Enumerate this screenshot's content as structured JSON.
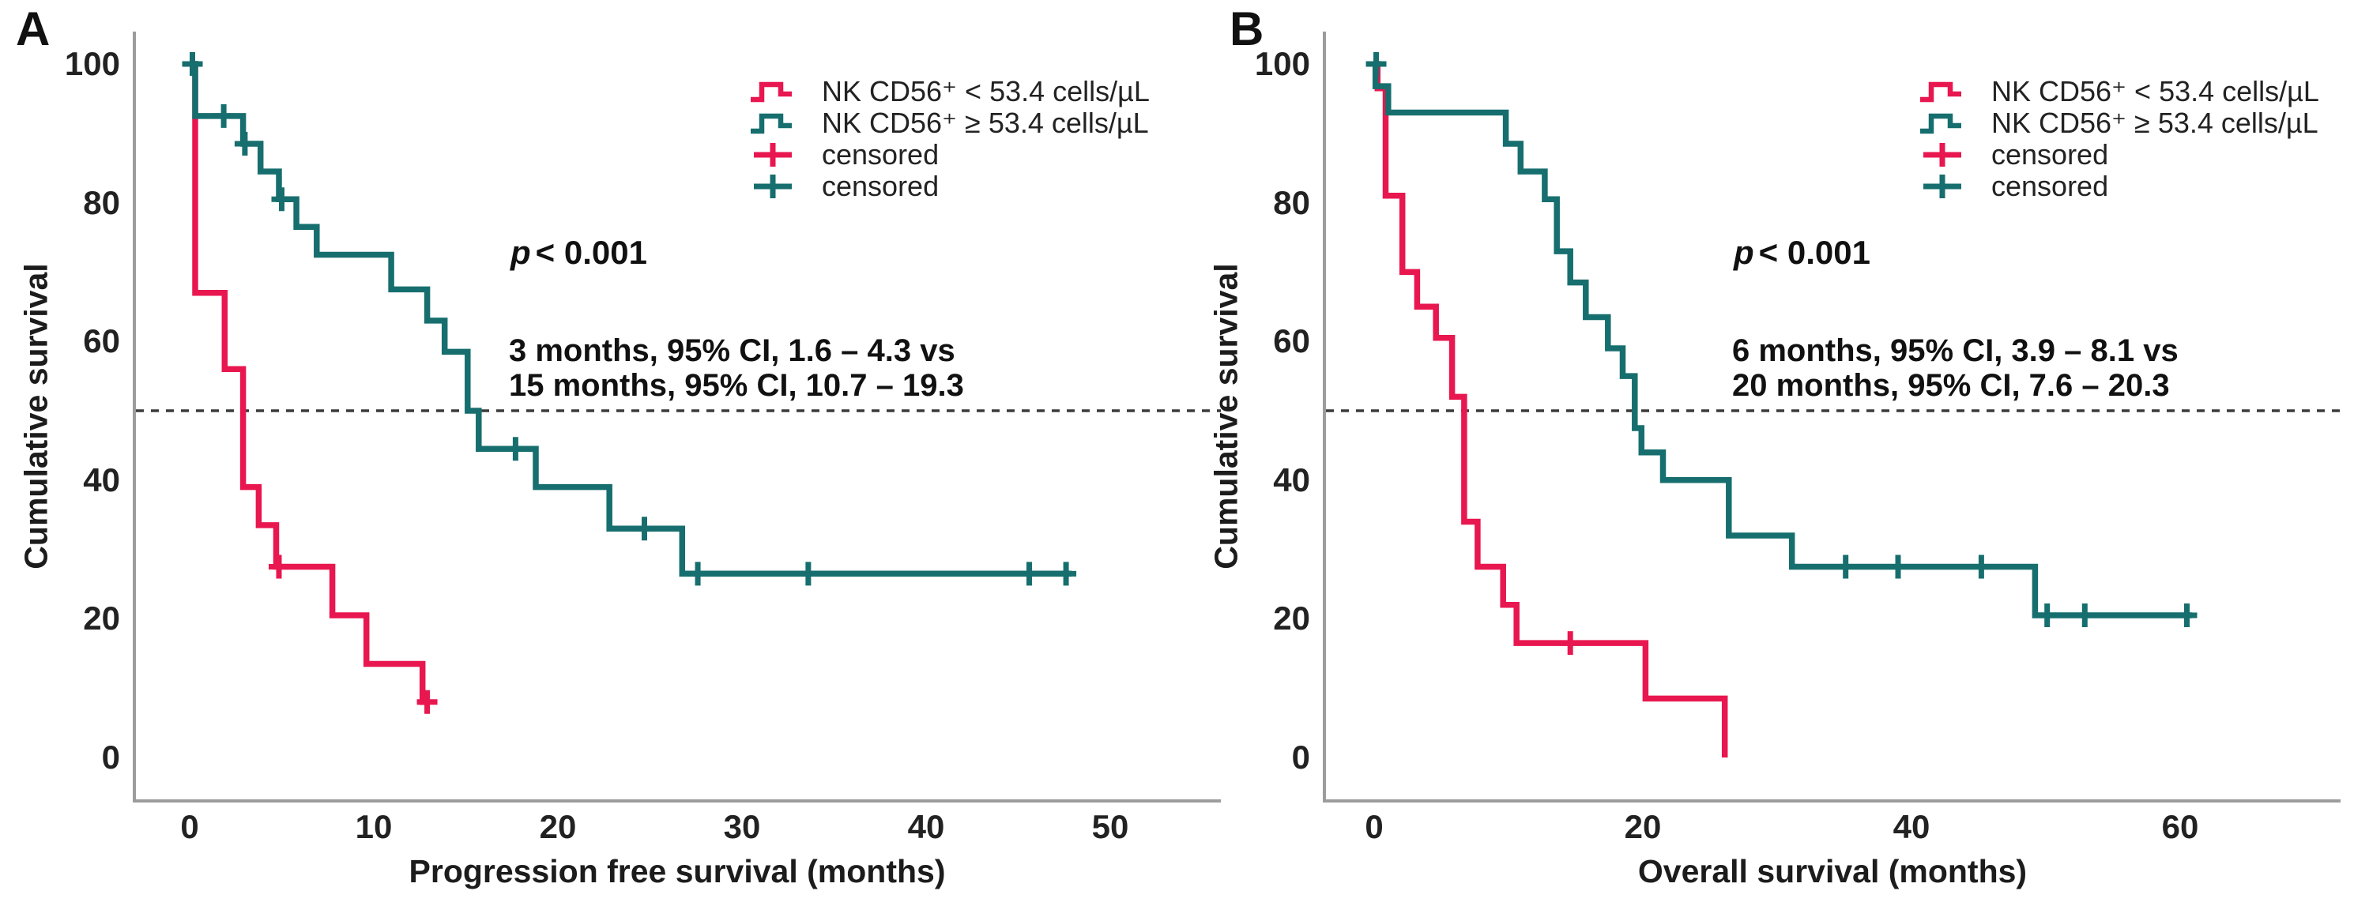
{
  "figure_type": "kaplan_meier_survival_figure",
  "background": "#ffffff",
  "colors": {
    "group_low": "#e8174f",
    "group_high": "#176e6e",
    "axis_line": "#9c9c9c",
    "reference_dash": "#3c3c3c",
    "text": "#1c1c1c"
  },
  "chart_data": [
    {
      "type": "line",
      "subtype": "kaplan_meier_step",
      "panel_label": "A",
      "xlabel": "Progression free survival (months)",
      "ylabel": "Cumulative survival",
      "xlim": [
        0,
        56
      ],
      "ylim": [
        0,
        100
      ],
      "xticks": [
        0,
        10,
        20,
        30,
        40,
        50
      ],
      "yticks": [
        100,
        80,
        60,
        40,
        20,
        0
      ],
      "grid": false,
      "legend_position": "top-right",
      "reference_line_y": 50,
      "p_value_italic": "p",
      "p_value_rest": "< 0.001",
      "p_value_text": "p < 0.001",
      "annotation_lines": [
        "3 months, 95% CI, 1.6 – 4.3 vs",
        "15 months, 95% CI, 10.7 – 19.3"
      ],
      "median_months": {
        "low_group": 3,
        "high_group": 15
      },
      "legend": [
        {
          "glyph": "step-line",
          "color": "#e8174f",
          "label": "NK CD56⁺ < 53.4 cells/µL"
        },
        {
          "glyph": "step-line",
          "color": "#176e6e",
          "label": "NK CD56⁺ ≥ 53.4 cells/µL"
        },
        {
          "glyph": "plus-cross",
          "color": "#e8174f",
          "label": "censored"
        },
        {
          "glyph": "plus-cross",
          "color": "#176e6e",
          "label": "censored"
        }
      ],
      "series": [
        {
          "name": "NK CD56⁺ < 53.4 cells/µL",
          "color": "#e8174f",
          "steps": [
            [
              0,
              100
            ],
            [
              0.3,
              67
            ],
            [
              1.9,
              56
            ],
            [
              2.9,
              39
            ],
            [
              3.75,
              33.5
            ],
            [
              4.7,
              27.5
            ],
            [
              7.75,
              20.5
            ],
            [
              9.6,
              13.5
            ],
            [
              12.65,
              8
            ]
          ],
          "end_x": 13.0,
          "censored": [
            [
              4.85,
              27.5
            ],
            [
              12.9,
              8
            ]
          ]
        },
        {
          "name": "NK CD56⁺ ≥ 53.4 cells/µL",
          "color": "#176e6e",
          "steps": [
            [
              0,
              100
            ],
            [
              0.3,
              92.5
            ],
            [
              2.9,
              88.5
            ],
            [
              3.85,
              84.5
            ],
            [
              4.85,
              80.5
            ],
            [
              5.8,
              76.5
            ],
            [
              6.9,
              72.5
            ],
            [
              10.95,
              67.5
            ],
            [
              12.9,
              63
            ],
            [
              13.85,
              58.5
            ],
            [
              15.1,
              50
            ],
            [
              15.7,
              44.5
            ],
            [
              18.8,
              39
            ],
            [
              22.8,
              33
            ],
            [
              26.75,
              26.5
            ]
          ],
          "end_x": 47.9,
          "censored": [
            [
              0.15,
              100
            ],
            [
              1.85,
              92.5
            ],
            [
              3.0,
              88.5
            ],
            [
              5.0,
              80.5
            ],
            [
              17.7,
              44.5
            ],
            [
              24.7,
              33
            ],
            [
              27.6,
              26.5
            ],
            [
              33.6,
              26.5
            ],
            [
              45.6,
              26.5
            ],
            [
              47.6,
              26.5
            ]
          ]
        }
      ]
    },
    {
      "type": "line",
      "subtype": "kaplan_meier_step",
      "panel_label": "B",
      "xlabel": "Overall survival (months)",
      "ylabel": "Cumulative survival",
      "xlim": [
        0,
        72
      ],
      "ylim": [
        0,
        100
      ],
      "xticks": [
        0,
        20,
        40,
        60
      ],
      "yticks": [
        100,
        80,
        60,
        40,
        20,
        0
      ],
      "grid": false,
      "legend_position": "top-right",
      "reference_line_y": 50,
      "p_value_italic": "p",
      "p_value_rest": "< 0.001",
      "p_value_text": "p < 0.001",
      "annotation_lines": [
        "6 months, 95% CI, 3.9 – 8.1 vs",
        "20 months, 95% CI, 7.6 – 20.3"
      ],
      "median_months": {
        "low_group": 6,
        "high_group": 20
      },
      "legend": [
        {
          "glyph": "step-line",
          "color": "#e8174f",
          "label": "NK CD56⁺ < 53.4 cells/µL"
        },
        {
          "glyph": "step-line",
          "color": "#176e6e",
          "label": "NK CD56⁺ ≥ 53.4 cells/µL"
        },
        {
          "glyph": "plus-cross",
          "color": "#e8174f",
          "label": "censored"
        },
        {
          "glyph": "plus-cross",
          "color": "#176e6e",
          "label": "censored"
        }
      ],
      "series": [
        {
          "name": "NK CD56⁺ < 53.4 cells/µL",
          "color": "#e8174f",
          "steps": [
            [
              0,
              100
            ],
            [
              0.25,
              96.5
            ],
            [
              0.85,
              81
            ],
            [
              2.1,
              70
            ],
            [
              3.2,
              65
            ],
            [
              4.6,
              60.5
            ],
            [
              5.8,
              52
            ],
            [
              6.7,
              34
            ],
            [
              7.7,
              27.5
            ],
            [
              9.6,
              22
            ],
            [
              10.6,
              16.5
            ],
            [
              20.2,
              8.5
            ],
            [
              26.1,
              0
            ]
          ],
          "end_x": 26.1,
          "censored": [
            [
              14.6,
              16.5
            ]
          ]
        },
        {
          "name": "NK CD56⁺ ≥ 53.4 cells/µL",
          "color": "#176e6e",
          "steps": [
            [
              0,
              100
            ],
            [
              0.1,
              96.8
            ],
            [
              1.05,
              93
            ],
            [
              9.8,
              88.5
            ],
            [
              10.9,
              84.5
            ],
            [
              12.7,
              80.5
            ],
            [
              13.6,
              73
            ],
            [
              14.6,
              68.5
            ],
            [
              15.75,
              63.5
            ],
            [
              17.4,
              59
            ],
            [
              18.5,
              55
            ],
            [
              19.4,
              47.5
            ],
            [
              19.9,
              44
            ],
            [
              21.5,
              40
            ],
            [
              26.4,
              32
            ],
            [
              31.1,
              27.5
            ],
            [
              49.2,
              20.5
            ]
          ],
          "end_x": 60.9,
          "censored": [
            [
              0.15,
              100
            ],
            [
              35.1,
              27.5
            ],
            [
              39.0,
              27.5
            ],
            [
              45.2,
              27.5
            ],
            [
              50.1,
              20.5
            ],
            [
              52.9,
              20.5
            ],
            [
              60.5,
              20.5
            ]
          ]
        }
      ]
    }
  ]
}
